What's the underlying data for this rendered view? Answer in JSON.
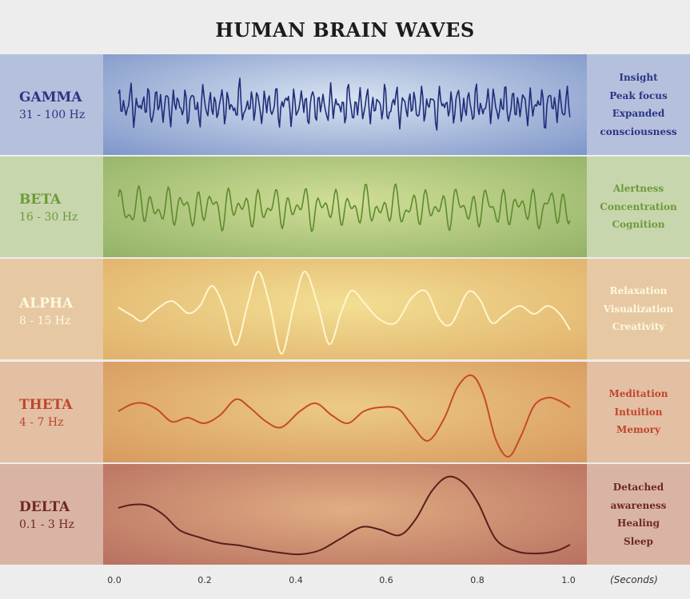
{
  "title": "HUMAN BRAIN WAVES",
  "bands": [
    {
      "name": "GAMMA",
      "hz": "31 - 100 Hz",
      "descriptors": [
        "Insight",
        "Peak focus",
        "Expanded",
        "consciousness"
      ],
      "colors": {
        "text": "#2b3586",
        "wave": "#1f2d7a",
        "left": "#b5c1dc",
        "right": "#b5c1dc",
        "plot_center": "#d8e3f1",
        "plot_edge": "#7f96c9"
      }
    },
    {
      "name": "BETA",
      "hz": "16 - 30 Hz",
      "descriptors": [
        "Alertness",
        "Concentration",
        "Cognition"
      ],
      "colors": {
        "text": "#6e9a3a",
        "wave": "#5d8b2b",
        "left": "#c7d6ad",
        "right": "#c7d6ad",
        "plot_center": "#d1de97",
        "plot_edge": "#92b268"
      }
    },
    {
      "name": "ALPHA",
      "hz": "8 - 15 Hz",
      "descriptors": [
        "Relaxation",
        "Visualization",
        "Creativity"
      ],
      "colors": {
        "text": "#fff8df",
        "wave": "#fff6cc",
        "left": "#e6c9a2",
        "right": "#e6c9a2",
        "plot_center": "#f2df93",
        "plot_edge": "#e1b06c"
      }
    },
    {
      "name": "THETA",
      "hz": "4 - 7 Hz",
      "descriptors": [
        "Meditation",
        "Intuition",
        "Memory"
      ],
      "colors": {
        "text": "#c0452d",
        "wave": "#c54a2c",
        "left": "#e3c0a4",
        "right": "#e3c0a4",
        "plot_center": "#eccb86",
        "plot_edge": "#d8995f"
      }
    },
    {
      "name": "DELTA",
      "hz": "0.1 - 3 Hz",
      "descriptors": [
        "Detached",
        "awareness",
        "Healing",
        "Sleep"
      ],
      "colors": {
        "text": "#6e2722",
        "wave": "#5a1f1c",
        "left": "#d9b4a4",
        "right": "#d9b4a4",
        "plot_center": "#e0ad82",
        "plot_edge": "#b87061"
      }
    }
  ],
  "x_axis": {
    "ticks": [
      "0.0",
      "0.2",
      "0.4",
      "0.6",
      "0.8",
      "1.0"
    ],
    "unit_label": "(Seconds)"
  }
}
